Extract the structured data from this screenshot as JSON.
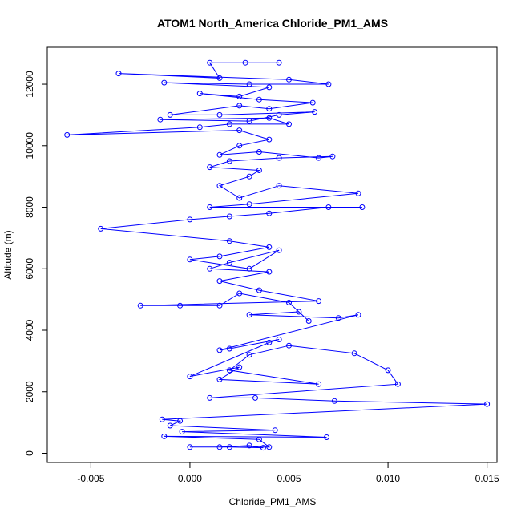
{
  "chart_data": {
    "type": "line",
    "title": "ATOM1 North_America Chloride_PM1_AMS",
    "xlabel": "Chloride_PM1_AMS",
    "ylabel": "Altitude (m)",
    "xlim": [
      -0.0072,
      0.0155
    ],
    "ylim": [
      -300,
      13200
    ],
    "x_ticks": [
      -0.005,
      0.0,
      0.005,
      0.01,
      0.015
    ],
    "x_tick_labels": [
      "-0.005",
      "0.000",
      "0.005",
      "0.010",
      "0.015"
    ],
    "y_ticks": [
      0,
      2000,
      4000,
      6000,
      8000,
      10000,
      12000
    ],
    "y_tick_labels": [
      "0",
      "2000",
      "4000",
      "6000",
      "8000",
      "10000",
      "12000"
    ],
    "marker": "open-circle",
    "grid": false,
    "legend": "none",
    "series": [
      {
        "color": "#0000ff",
        "points": [
          [
            0.0,
            200
          ],
          [
            0.002,
            200
          ],
          [
            0.0037,
            180
          ],
          [
            0.003,
            250
          ],
          [
            0.0015,
            200
          ],
          [
            0.004,
            200
          ],
          [
            0.0035,
            450
          ],
          [
            -0.0013,
            550
          ],
          [
            0.0069,
            520
          ],
          [
            -0.0004,
            700
          ],
          [
            0.0043,
            750
          ],
          [
            -0.001,
            900
          ],
          [
            -0.0005,
            1050
          ],
          [
            -0.0014,
            1100
          ],
          [
            0.015,
            1600
          ],
          [
            0.0073,
            1700
          ],
          [
            0.0033,
            1800
          ],
          [
            0.001,
            1800
          ],
          [
            0.0105,
            2250
          ],
          [
            0.01,
            2700
          ],
          [
            0.0083,
            3250
          ],
          [
            0.005,
            3500
          ],
          [
            0.003,
            3200
          ],
          [
            0.002,
            2700
          ],
          [
            0.0065,
            2250
          ],
          [
            0.0015,
            2400
          ],
          [
            0.0025,
            2800
          ],
          [
            0.0,
            2500
          ],
          [
            0.004,
            3600
          ],
          [
            0.0045,
            3700
          ],
          [
            0.002,
            3400
          ],
          [
            0.0015,
            3350
          ],
          [
            0.0085,
            4500
          ],
          [
            0.0075,
            4400
          ],
          [
            0.003,
            4500
          ],
          [
            0.0055,
            4600
          ],
          [
            0.006,
            4300
          ],
          [
            0.005,
            4900
          ],
          [
            0.0025,
            5200
          ],
          [
            0.0015,
            4800
          ],
          [
            -0.0005,
            4800
          ],
          [
            -0.0025,
            4800
          ],
          [
            0.0065,
            4950
          ],
          [
            0.0035,
            5300
          ],
          [
            0.0015,
            5600
          ],
          [
            0.004,
            5900
          ],
          [
            0.001,
            6000
          ],
          [
            0.002,
            6200
          ],
          [
            0.0045,
            6600
          ],
          [
            0.003,
            6000
          ],
          [
            0.0,
            6300
          ],
          [
            0.0015,
            6400
          ],
          [
            0.004,
            6700
          ],
          [
            0.002,
            6900
          ],
          [
            -0.0045,
            7300
          ],
          [
            0.0,
            7600
          ],
          [
            0.002,
            7700
          ],
          [
            0.004,
            7800
          ],
          [
            0.007,
            8000
          ],
          [
            0.0087,
            8000
          ],
          [
            0.001,
            8000
          ],
          [
            0.003,
            8100
          ],
          [
            0.0085,
            8450
          ],
          [
            0.0045,
            8700
          ],
          [
            0.0025,
            8300
          ],
          [
            0.0015,
            8700
          ],
          [
            0.003,
            9000
          ],
          [
            0.0035,
            9200
          ],
          [
            0.001,
            9300
          ],
          [
            0.002,
            9500
          ],
          [
            0.0045,
            9600
          ],
          [
            0.0072,
            9650
          ],
          [
            0.0065,
            9600
          ],
          [
            0.0035,
            9800
          ],
          [
            0.0015,
            9700
          ],
          [
            0.0025,
            10000
          ],
          [
            0.004,
            10200
          ],
          [
            0.0025,
            10500
          ],
          [
            -0.0062,
            10350
          ],
          [
            0.0005,
            10600
          ],
          [
            0.002,
            10700
          ],
          [
            0.005,
            10700
          ],
          [
            0.004,
            10900
          ],
          [
            -0.0015,
            10850
          ],
          [
            0.003,
            10800
          ],
          [
            0.0045,
            11000
          ],
          [
            0.0063,
            11100
          ],
          [
            0.0015,
            11000
          ],
          [
            -0.001,
            11000
          ],
          [
            0.0025,
            11300
          ],
          [
            0.004,
            11200
          ],
          [
            0.0062,
            11400
          ],
          [
            0.0035,
            11500
          ],
          [
            0.0005,
            11700
          ],
          [
            0.0025,
            11600
          ],
          [
            0.004,
            11900
          ],
          [
            -0.0013,
            12050
          ],
          [
            0.003,
            12000
          ],
          [
            0.007,
            12000
          ],
          [
            0.005,
            12150
          ],
          [
            -0.0036,
            12350
          ],
          [
            0.0015,
            12200
          ],
          [
            0.001,
            12700
          ],
          [
            0.0028,
            12700
          ],
          [
            0.0045,
            12700
          ]
        ]
      }
    ]
  }
}
